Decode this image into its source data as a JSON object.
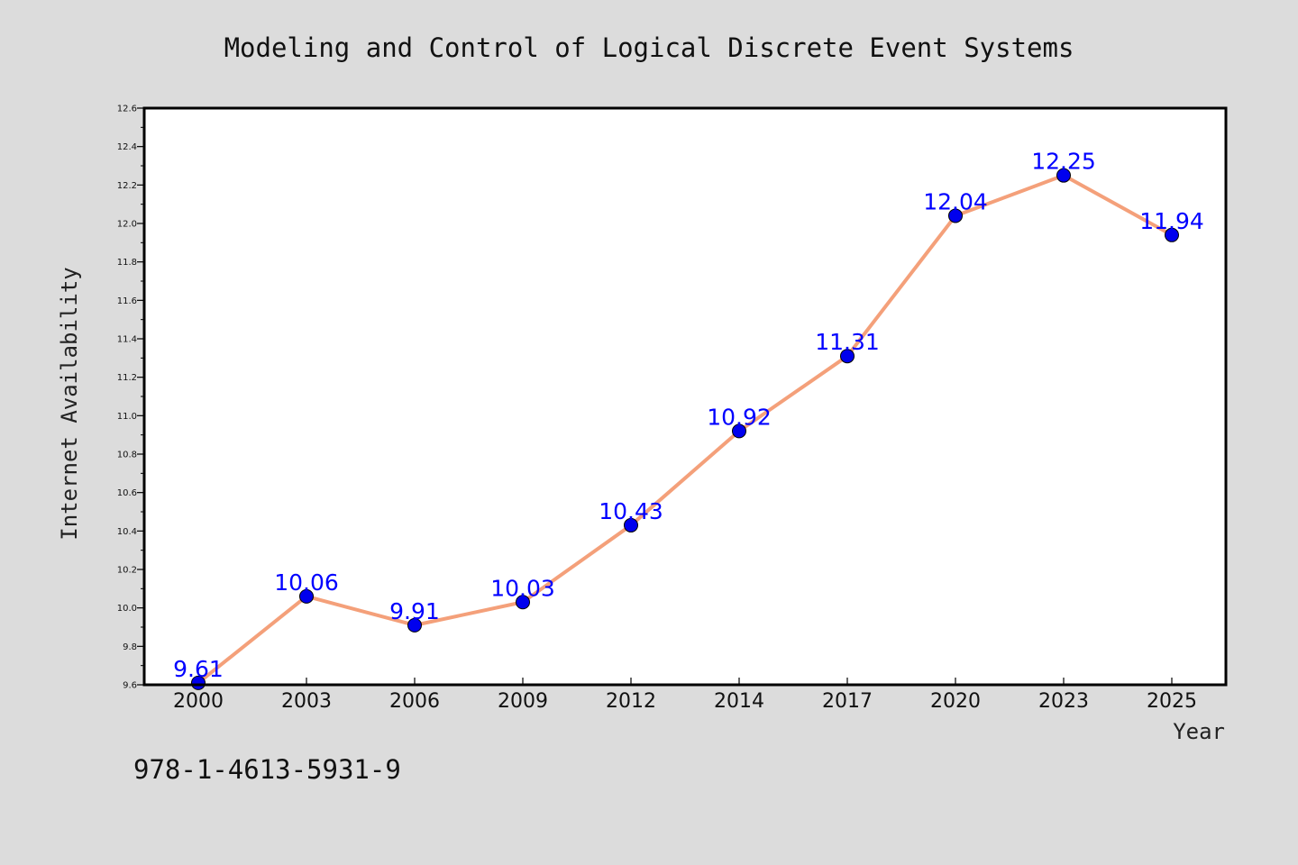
{
  "chart_data": {
    "type": "line",
    "title": "Modeling and Control of Logical Discrete Event Systems",
    "xlabel": "Year",
    "ylabel": "Internet Availability",
    "categories": [
      "2000",
      "2003",
      "2006",
      "2009",
      "2012",
      "2014",
      "2017",
      "2020",
      "2023",
      "2025"
    ],
    "series": [
      {
        "values": [
          9.61,
          10.06,
          9.91,
          10.03,
          10.43,
          10.92,
          11.31,
          12.04,
          12.25,
          11.94
        ],
        "labels": [
          "9.61",
          "10.06",
          "9.91",
          "10.03",
          "10.43",
          "10.92",
          "11.31",
          "12.04",
          "12.25",
          "11.94"
        ],
        "line_color": "#f4a07a",
        "marker_color": "#0000ee"
      }
    ],
    "ylim": [
      9.6,
      12.6
    ],
    "yticks": [
      "9.6",
      "9.8",
      "10.0",
      "10.2",
      "10.4",
      "10.6",
      "10.8",
      "11.0",
      "11.2",
      "11.4",
      "11.6",
      "11.8",
      "12.0",
      "12.2",
      "12.4",
      "12.6"
    ],
    "grid": false,
    "legend": "none"
  },
  "footer": {
    "isbn": "978-1-4613-5931-9"
  },
  "colors": {
    "background": "#dcdcdc",
    "plot_background": "#ffffff",
    "data_label": "#0000ff"
  }
}
